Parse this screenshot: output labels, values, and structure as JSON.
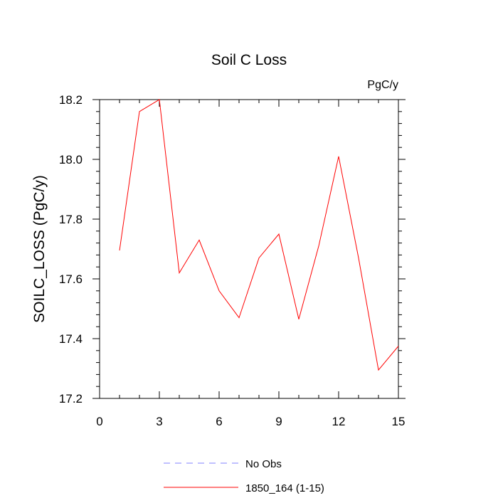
{
  "chart_data": {
    "type": "line",
    "title": "Soil C Loss",
    "units_label": "PgC/y",
    "xlabel": "",
    "ylabel": "SOILC_LOSS  (PgC/y)",
    "xlim": [
      0,
      15
    ],
    "ylim": [
      17.2,
      18.2
    ],
    "x_ticks": [
      0,
      3,
      6,
      9,
      12,
      15
    ],
    "y_ticks": [
      17.2,
      17.4,
      17.6,
      17.8,
      18.0,
      18.2
    ],
    "x_tick_labels": [
      "0",
      "3",
      "6",
      "9",
      "12",
      "15"
    ],
    "y_tick_labels": [
      "17.2",
      "17.4",
      "17.6",
      "17.8",
      "18.0",
      "18.2"
    ],
    "grid": false,
    "legend_position": "bottom",
    "series": [
      {
        "name": "1850_164 (1-15)",
        "color": "#ff0000",
        "style": "solid",
        "x": [
          1,
          2,
          3,
          4,
          5,
          6,
          7,
          8,
          9,
          10,
          11,
          12,
          13,
          14,
          15
        ],
        "values": [
          17.695,
          18.16,
          18.2,
          17.62,
          17.73,
          17.56,
          17.47,
          17.67,
          17.75,
          17.465,
          17.71,
          18.01,
          17.67,
          17.295,
          17.375
        ]
      }
    ],
    "legend": [
      {
        "label": "No Obs",
        "color": "#8080ff",
        "style": "dashed"
      },
      {
        "label": "1850_164 (1-15)",
        "color": "#ff0000",
        "style": "solid"
      }
    ]
  }
}
